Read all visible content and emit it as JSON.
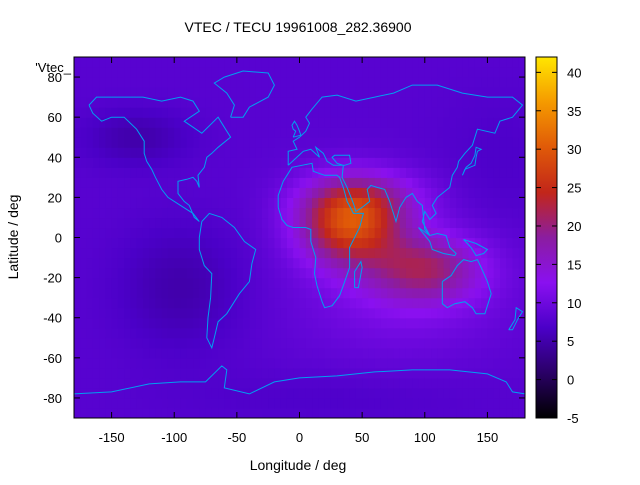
{
  "chart_data": {
    "type": "heatmap",
    "title": "VTEC / TECU 19961008_282.36900",
    "xlabel": "Longitude / deg",
    "ylabel": "Latitude / deg",
    "legend_label": "'Vtec_",
    "xlim": [
      -180,
      180
    ],
    "ylim": [
      -90,
      90
    ],
    "x_ticks": [
      -150,
      -100,
      -50,
      0,
      50,
      100,
      150
    ],
    "y_ticks": [
      -80,
      -60,
      -40,
      -20,
      0,
      20,
      40,
      60,
      80
    ],
    "colorbar": {
      "range": [
        -5,
        42
      ],
      "ticks": [
        -5,
        0,
        5,
        10,
        15,
        20,
        25,
        30,
        35,
        40
      ],
      "colors": [
        "#000000",
        "#2a0066",
        "#4b00c8",
        "#8a10f0",
        "#8b1da0",
        "#c2261a",
        "#e05a08",
        "#f59a00",
        "#ffe600"
      ]
    },
    "field": {
      "background": 8,
      "features": [
        {
          "lon": 40,
          "lat": 7,
          "sigma_lon": 28,
          "sigma_lat": 14,
          "amplitude": 19
        },
        {
          "lon": 55,
          "lat": 20,
          "sigma_lon": 35,
          "sigma_lat": 10,
          "amplitude": 6
        },
        {
          "lon": 100,
          "lat": -15,
          "sigma_lon": 32,
          "sigma_lat": 12,
          "amplitude": 11
        },
        {
          "lon": 80,
          "lat": -30,
          "sigma_lon": 60,
          "sigma_lat": 22,
          "amplitude": 3
        },
        {
          "lon": -130,
          "lat": 50,
          "sigma_lon": 30,
          "sigma_lat": 10,
          "amplitude": -3
        },
        {
          "lon": -95,
          "lat": -25,
          "sigma_lon": 35,
          "sigma_lat": 22,
          "amplitude": -3
        },
        {
          "lon": 160,
          "lat": 40,
          "sigma_lon": 35,
          "sigma_lat": 25,
          "amplitude": -1
        },
        {
          "lon": 20,
          "lat": -80,
          "sigma_lon": 90,
          "sigma_lat": 10,
          "amplitude": -1
        }
      ]
    },
    "coastline_color": "#00a0f0"
  }
}
